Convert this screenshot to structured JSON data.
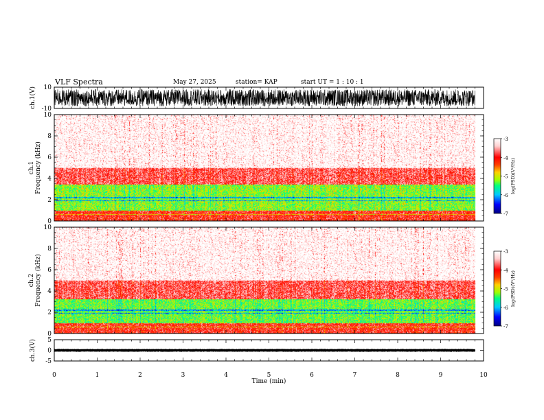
{
  "header": {
    "title": "VLF Spectra",
    "date": "May 27, 2025",
    "station": "station= KAP",
    "start": "start  UT =   1 : 10 : 1"
  },
  "colors": {
    "spectrogram_scale": [
      "#000080",
      "#0000ff",
      "#00c8ff",
      "#00ff80",
      "#a0ff00",
      "#ffd000",
      "#ff4000",
      "#ff0000",
      "#ffd0d0",
      "#ffffff"
    ],
    "background_noise": "#ff0000"
  },
  "chart_data": [
    {
      "name": "ch1-waveform",
      "type": "line",
      "ylabel": "ch.1(V)",
      "ylim": [
        -10,
        10
      ],
      "y_tick_labels": [
        "10",
        "-10"
      ],
      "xlim": [
        0,
        10
      ],
      "description_values": {
        "amplitude_range": [
          -8,
          8
        ],
        "data_end_min": 9.8
      }
    },
    {
      "name": "ch1-spectrogram",
      "type": "heatmap",
      "ylabel_line1": "ch.1",
      "ylabel_line2": "Frequency (kHz)",
      "ylim": [
        0,
        10
      ],
      "y_tick_labels": [
        "0",
        "2",
        "4",
        "6",
        "8",
        "10"
      ],
      "xlim": [
        0,
        10
      ],
      "data_end_min": 9.8,
      "bands": [
        {
          "from_khz": 0.0,
          "to_khz": 1.0,
          "log_psd": -4.0
        },
        {
          "from_khz": 1.0,
          "to_khz": 3.4,
          "log_psd": -5.2
        },
        {
          "from_khz": 3.4,
          "to_khz": 5.0,
          "log_psd": -3.8
        },
        {
          "from_khz": 5.0,
          "to_khz": 10.0,
          "log_psd": -3.3
        }
      ],
      "colorbar": {
        "label": "log(PSD)(V²/Hz)",
        "range": [
          -7,
          -3
        ],
        "tick_labels": [
          "-3",
          "-4",
          "-5",
          "-6",
          "-7"
        ]
      }
    },
    {
      "name": "ch2-spectrogram",
      "type": "heatmap",
      "ylabel_line1": "ch.2",
      "ylabel_line2": "Frequency (kHz)",
      "ylim": [
        0,
        10
      ],
      "y_tick_labels": [
        "0",
        "2",
        "4",
        "6",
        "8",
        "10"
      ],
      "xlim": [
        0,
        10
      ],
      "data_end_min": 9.8,
      "bands": [
        {
          "from_khz": 0.0,
          "to_khz": 1.0,
          "log_psd": -4.0
        },
        {
          "from_khz": 1.0,
          "to_khz": 3.2,
          "log_psd": -5.3
        },
        {
          "from_khz": 3.2,
          "to_khz": 5.0,
          "log_psd": -3.8
        },
        {
          "from_khz": 5.0,
          "to_khz": 10.0,
          "log_psd": -3.3
        }
      ],
      "colorbar": {
        "label": "log(PSD)(V²/Hz)",
        "range": [
          -7,
          -3
        ],
        "tick_labels": [
          "-3",
          "-4",
          "-5",
          "-6",
          "-7"
        ]
      }
    },
    {
      "name": "ch3-waveform",
      "type": "line",
      "ylabel": "ch.3(V)",
      "ylim": [
        -5,
        5
      ],
      "y_tick_labels": [
        "5",
        "0",
        "-5"
      ],
      "xlim": [
        0,
        10
      ],
      "description_values": {
        "amplitude_range": [
          -0.6,
          0.6
        ],
        "data_end_min": 9.8
      }
    }
  ],
  "x_axis": {
    "label": "Time  (min)",
    "tick_labels": [
      "0",
      "1",
      "2",
      "3",
      "4",
      "5",
      "6",
      "7",
      "8",
      "9",
      "10"
    ],
    "range": [
      0,
      10
    ]
  }
}
